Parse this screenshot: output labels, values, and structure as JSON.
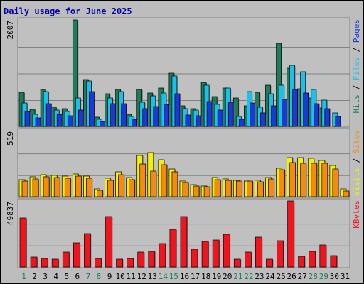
{
  "chart_data": {
    "type": "bar",
    "title": "Daily usage for June 2025",
    "categories": [
      "1",
      "2",
      "3",
      "4",
      "5",
      "6",
      "7",
      "8",
      "9",
      "10",
      "11",
      "12",
      "13",
      "14",
      "15",
      "16",
      "17",
      "18",
      "19",
      "20",
      "21",
      "22",
      "23",
      "24",
      "25",
      "26",
      "27",
      "28",
      "29",
      "30",
      "31"
    ],
    "weekend_days": [
      1,
      7,
      8,
      14,
      15,
      21,
      22,
      28,
      29
    ],
    "panels": [
      {
        "ylabel_max": "2007",
        "ymax": 2007,
        "legend": [
          "Hits",
          "Files",
          "Pages"
        ],
        "series": [
          {
            "name": "Hits",
            "color": "#1b7d5a",
            "values": [
              640,
              320,
              700,
              360,
              330,
              2007,
              880,
              170,
              620,
              690,
              230,
              700,
              630,
              720,
              1000,
              390,
              340,
              830,
              560,
              720,
              530,
              390,
              640,
              780,
              1570,
              1100,
              710,
              540,
              350,
              0,
              0
            ]
          },
          {
            "name": "Files",
            "color": "#19c2ea",
            "values": [
              440,
              230,
              660,
              310,
              280,
              540,
              850,
              140,
              540,
              650,
              190,
              460,
              580,
              630,
              950,
              330,
              310,
              770,
              410,
              720,
              190,
              660,
              360,
              610,
              780,
              1150,
              1030,
              690,
              500,
              260,
              0
            ]
          },
          {
            "name": "Pages",
            "color": "#1a39d6",
            "values": [
              280,
              160,
              430,
              230,
              200,
              310,
              650,
              100,
              430,
              430,
              140,
              340,
              380,
              420,
              620,
              220,
              200,
              470,
              310,
              460,
              130,
              440,
              250,
              390,
              510,
              700,
              630,
              430,
              330,
              190,
              0
            ]
          }
        ]
      },
      {
        "ylabel_max": "519",
        "ymax": 519,
        "legend": [
          "Visits",
          "Sites"
        ],
        "series": [
          {
            "name": "Visits",
            "color": "#f2f200",
            "values": [
              135,
              155,
              175,
              165,
              160,
              180,
              160,
              60,
              145,
              195,
              150,
              325,
              345,
              290,
              215,
              125,
              95,
              85,
              150,
              140,
              130,
              125,
              130,
              150,
              225,
              305,
              305,
              300,
              285,
              245,
              60
            ]
          },
          {
            "name": "Sites",
            "color": "#f58a0e",
            "values": [
              125,
              140,
              155,
              150,
              145,
              160,
              145,
              50,
              130,
              175,
              135,
              255,
              200,
              250,
              195,
              110,
              85,
              80,
              135,
              130,
              125,
              120,
              115,
              140,
              210,
              270,
              260,
              260,
              265,
              215,
              45
            ]
          }
        ]
      },
      {
        "ylabel_max": "49837",
        "ymax": 49837,
        "legend": [
          "KBytes"
        ],
        "series": [
          {
            "name": "KBytes",
            "color": "#f0141e",
            "values": [
              37000,
              7300,
              6500,
              5900,
              11000,
              18000,
              25000,
              6400,
              38000,
              5900,
              6300,
              11500,
              11700,
              17600,
              28200,
              38100,
              13500,
              19500,
              20500,
              24500,
              5800,
              11000,
              22500,
              5900,
              19600,
              49837,
              7800,
              11600,
              16500,
              8700,
              0
            ]
          }
        ]
      }
    ]
  }
}
